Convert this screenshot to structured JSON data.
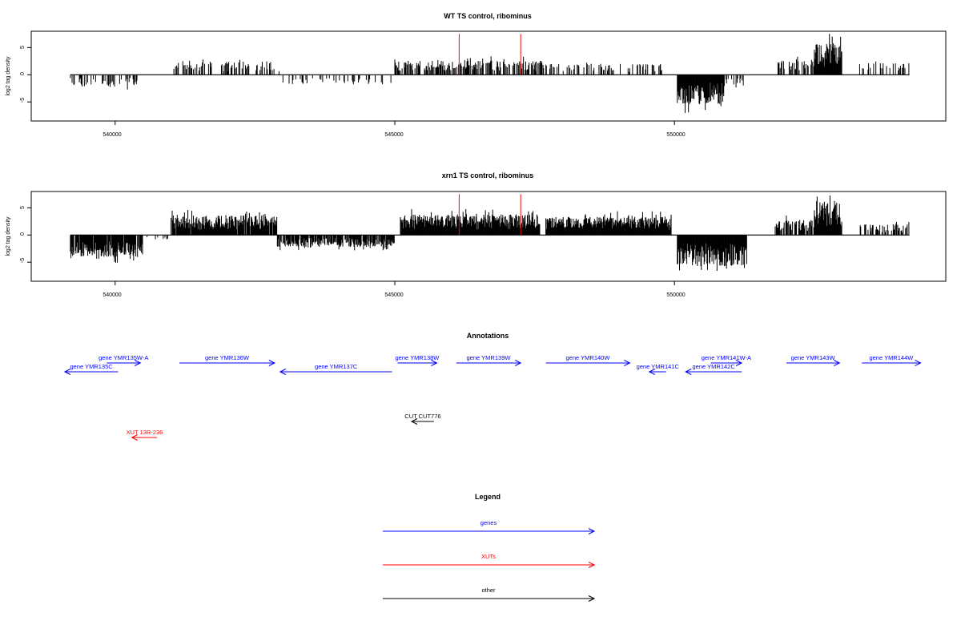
{
  "chart_data": [
    {
      "type": "bar",
      "title": "WT TS control, ribominus",
      "ylabel": "log2 tag density",
      "xlim": [
        538500,
        554850
      ],
      "ylim": [
        -8.5,
        8
      ],
      "x_ticks": [
        540000,
        545000,
        550000
      ],
      "x_tick_labels": [
        "540000",
        "545000",
        "550000"
      ],
      "y_ticks": [
        -5,
        0,
        5
      ],
      "y_tick_labels": [
        "-5",
        "0",
        "5"
      ],
      "data_range": [
        539200,
        554200
      ],
      "markers": [
        {
          "x": 546150,
          "color": "#ff0000"
        },
        {
          "x": 547250,
          "color": "#ff0000"
        }
      ],
      "regions": [
        {
          "from": 539200,
          "to": 540400,
          "sign": -1,
          "amp": 2.2,
          "density": 0.35
        },
        {
          "from": 541000,
          "to": 543000,
          "sign": 1,
          "amp": 2.4,
          "density": 0.4
        },
        {
          "from": 543000,
          "to": 545000,
          "sign": -1,
          "amp": 1.8,
          "density": 0.25
        },
        {
          "from": 545000,
          "to": 547700,
          "sign": 1,
          "amp": 2.6,
          "density": 0.5
        },
        {
          "from": 547700,
          "to": 549800,
          "sign": 1,
          "amp": 2.0,
          "density": 0.3
        },
        {
          "from": 550050,
          "to": 550900,
          "sign": -1,
          "amp": 5.5,
          "density": 1.0
        },
        {
          "from": 550900,
          "to": 551300,
          "sign": -1,
          "amp": 1.8,
          "density": 0.3
        },
        {
          "from": 551800,
          "to": 552500,
          "sign": 1,
          "amp": 2.6,
          "density": 0.5
        },
        {
          "from": 552500,
          "to": 553000,
          "sign": 1,
          "amp": 5.8,
          "density": 1.0
        },
        {
          "from": 553300,
          "to": 554200,
          "sign": 1,
          "amp": 2.2,
          "density": 0.3
        }
      ]
    },
    {
      "type": "bar",
      "title": "xrn1 TS control, ribominus",
      "ylabel": "log2 tag density",
      "xlim": [
        538500,
        554850
      ],
      "ylim": [
        -8.5,
        8
      ],
      "x_ticks": [
        540000,
        545000,
        550000
      ],
      "x_tick_labels": [
        "540000",
        "545000",
        "550000"
      ],
      "y_ticks": [
        -5,
        0,
        5
      ],
      "y_tick_labels": [
        "-5",
        "0",
        "5"
      ],
      "data_range": [
        539200,
        554200
      ],
      "markers": [
        {
          "x": 546150,
          "color": "#ff0000"
        },
        {
          "x": 547250,
          "color": "#ff0000"
        }
      ],
      "regions": [
        {
          "from": 539200,
          "to": 540500,
          "sign": -1,
          "amp": 4.0,
          "density": 0.9
        },
        {
          "from": 540500,
          "to": 541000,
          "sign": -1,
          "amp": 1.0,
          "density": 0.2
        },
        {
          "from": 541000,
          "to": 542900,
          "sign": 1,
          "amp": 3.6,
          "density": 0.95
        },
        {
          "from": 542900,
          "to": 545000,
          "sign": -1,
          "amp": 2.2,
          "density": 0.85
        },
        {
          "from": 545100,
          "to": 547600,
          "sign": 1,
          "amp": 3.8,
          "density": 1.0
        },
        {
          "from": 547700,
          "to": 549950,
          "sign": 1,
          "amp": 3.4,
          "density": 1.0
        },
        {
          "from": 550050,
          "to": 551300,
          "sign": -1,
          "amp": 5.8,
          "density": 1.0
        },
        {
          "from": 551800,
          "to": 552500,
          "sign": 1,
          "amp": 2.8,
          "density": 0.6
        },
        {
          "from": 552500,
          "to": 553000,
          "sign": 1,
          "amp": 6.0,
          "density": 1.0
        },
        {
          "from": 553300,
          "to": 554200,
          "sign": 1,
          "amp": 2.0,
          "density": 0.4
        }
      ]
    }
  ],
  "annotations": {
    "title": "Annotations",
    "genes": [
      {
        "name": "gene YMR135C",
        "start": 539100,
        "end": 540050,
        "strand": "-",
        "row": 2
      },
      {
        "name": "gene YMR135W-A",
        "start": 539850,
        "end": 540450,
        "strand": "+",
        "row": 1
      },
      {
        "name": "gene YMR136W",
        "start": 541150,
        "end": 542850,
        "strand": "+",
        "row": 1
      },
      {
        "name": "gene YMR137C",
        "start": 542950,
        "end": 544950,
        "strand": "-",
        "row": 2
      },
      {
        "name": "gene YMR138W",
        "start": 545050,
        "end": 545750,
        "strand": "+",
        "row": 1
      },
      {
        "name": "gene YMR139W",
        "start": 546100,
        "end": 547250,
        "strand": "+",
        "row": 1
      },
      {
        "name": "gene YMR140W",
        "start": 547700,
        "end": 549200,
        "strand": "+",
        "row": 1
      },
      {
        "name": "gene YMR141C",
        "start": 549550,
        "end": 549850,
        "strand": "-",
        "row": 2
      },
      {
        "name": "gene YMR141W-A",
        "start": 550650,
        "end": 551200,
        "strand": "+",
        "row": 1
      },
      {
        "name": "gene YMR142C",
        "start": 550200,
        "end": 551200,
        "strand": "-",
        "row": 2
      },
      {
        "name": "gene YMR143W",
        "start": 552000,
        "end": 552950,
        "strand": "+",
        "row": 1
      },
      {
        "name": "gene YMR144W",
        "start": 553350,
        "end": 554400,
        "strand": "+",
        "row": 1
      }
    ],
    "cuts": [
      {
        "name": "CUT CUT776",
        "start": 545300,
        "end": 545700,
        "strand": "-",
        "row": 3
      }
    ],
    "xuts": [
      {
        "name": "XUT 13R-236",
        "start": 540300,
        "end": 540750,
        "strand": "-",
        "row": 4
      }
    ]
  },
  "legend": {
    "title": "Legend",
    "items": [
      {
        "label": "genes",
        "color": "#0000ff"
      },
      {
        "label": "XUTs",
        "color": "#ff0000"
      },
      {
        "label": "other",
        "color": "#000000"
      }
    ]
  },
  "colors": {
    "gene": "#0000ff",
    "xut": "#ff0000",
    "other": "#000000",
    "marker": "#ff0000",
    "bars": "#000000"
  }
}
